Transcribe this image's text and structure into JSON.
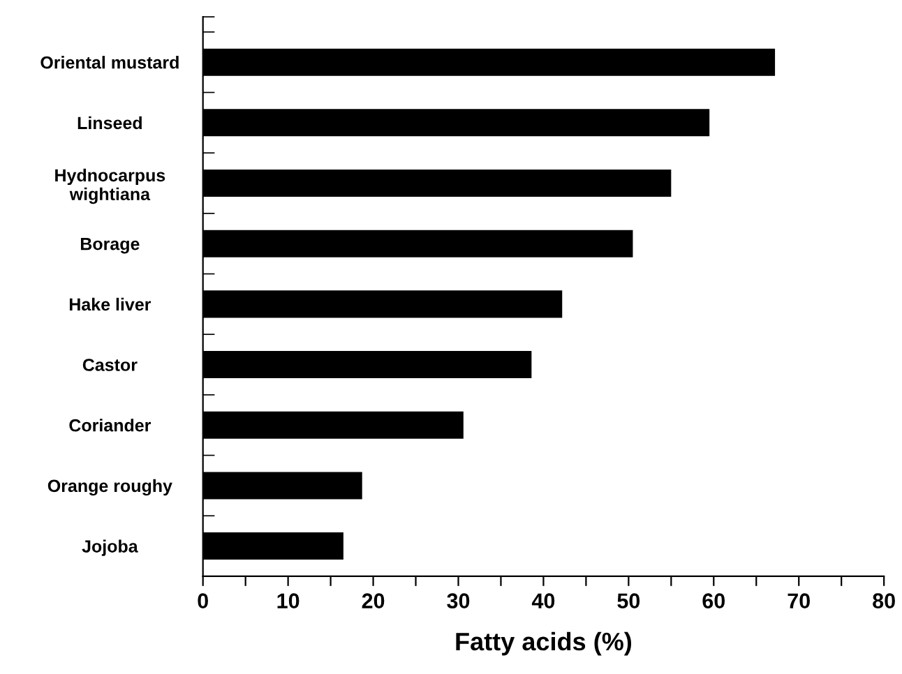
{
  "chart_data": {
    "type": "bar",
    "orientation": "horizontal",
    "xlabel": "Fatty acids (%)",
    "categories": [
      "Oriental mustard",
      "Linseed",
      "Hydnocarpus\nwightiana",
      "Borage",
      "Hake liver",
      "Castor",
      "Coriander",
      "Orange roughy",
      "Jojoba"
    ],
    "values": [
      67.2,
      59.5,
      55.0,
      50.5,
      42.2,
      38.6,
      30.6,
      18.7,
      16.5
    ],
    "color": "#000000",
    "xlim": [
      0,
      80
    ],
    "xticks": [
      0,
      {
        "value": 5,
        "label": null
      },
      10,
      {
        "value": 15,
        "label": null
      },
      20,
      {
        "value": 25,
        "label": null
      },
      30,
      {
        "value": 35,
        "label": null
      },
      40,
      {
        "value": 45,
        "label": null
      },
      50,
      {
        "value": 55,
        "label": null
      },
      60,
      {
        "value": 65,
        "label": null
      },
      70,
      {
        "value": 75,
        "label": null
      },
      80
    ],
    "grid": false,
    "legend": false
  }
}
